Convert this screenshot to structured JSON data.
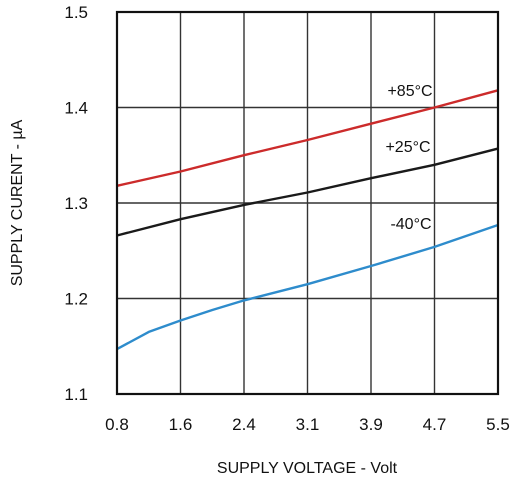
{
  "chart_data": {
    "type": "line",
    "xlabel": "SUPPLY VOLTAGE - Volt",
    "ylabel": "SUPPLY CURENT - µA",
    "xticks": [
      "0.8",
      "1.6",
      "2.4",
      "3.1",
      "3.9",
      "4.7",
      "5.5"
    ],
    "yticks": [
      "1.1",
      "1.2",
      "1.3",
      "1.4",
      "1.5"
    ],
    "xlim": [
      0.8,
      5.5
    ],
    "ylim": [
      1.1,
      1.5
    ],
    "grid": true,
    "series": [
      {
        "name": "+85°C",
        "color": "#cc2b2b",
        "x": [
          0.8,
          1.6,
          2.4,
          3.1,
          3.9,
          4.7,
          5.5
        ],
        "y": [
          1.318,
          1.333,
          1.35,
          1.366,
          1.383,
          1.4,
          1.418
        ]
      },
      {
        "name": "+25°C",
        "color": "#1a1a1a",
        "x": [
          0.8,
          1.6,
          2.4,
          3.1,
          3.9,
          4.7,
          5.5
        ],
        "y": [
          1.266,
          1.283,
          1.298,
          1.311,
          1.326,
          1.34,
          1.357
        ]
      },
      {
        "name": "-40°C",
        "color": "#2e8ccc",
        "x": [
          0.8,
          1.2,
          1.6,
          2.0,
          2.4,
          3.1,
          3.9,
          4.7,
          5.5
        ],
        "y": [
          1.147,
          1.165,
          1.177,
          1.188,
          1.198,
          1.215,
          1.234,
          1.254,
          1.277
        ]
      }
    ]
  }
}
